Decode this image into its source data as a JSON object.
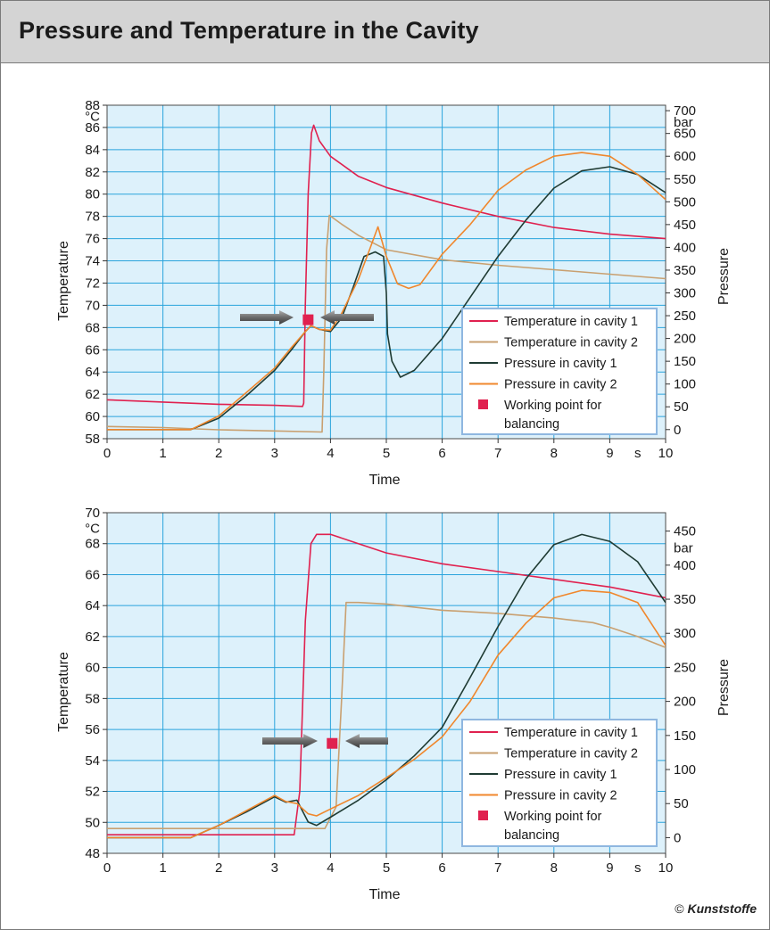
{
  "figure": {
    "title": "Pressure and Temperature in the Cavity",
    "credit_symbol": "©",
    "credit_brand": "Kunststoffe"
  },
  "chart_data": [
    {
      "type": "line",
      "x_label": "Time",
      "x_unit": "s",
      "x_ticks": [
        "0",
        "1",
        "2",
        "3",
        "4",
        "5",
        "6",
        "7",
        "8",
        "9",
        "10"
      ],
      "xlim": [
        0,
        10
      ],
      "y_left_label": "Temperature",
      "y_left_unit": "°C",
      "y_left_ticks": [
        "58",
        "60",
        "62",
        "64",
        "66",
        "68",
        "70",
        "72",
        "74",
        "76",
        "78",
        "80",
        "82",
        "84",
        "86",
        "88"
      ],
      "y_left_lim": [
        58,
        88
      ],
      "y_right_label": "Pressure",
      "y_right_unit": "bar",
      "y_right_ticks": [
        "0",
        "50",
        "100",
        "150",
        "200",
        "250",
        "300",
        "350",
        "400",
        "450",
        "500",
        "550",
        "600",
        "650",
        "700"
      ],
      "y_right_lim": [
        -20,
        712
      ],
      "grid": true,
      "legend_position": "lower-right",
      "colors": {
        "plot_bg": "#ddf1fb",
        "grid": "#2aa4dc",
        "legend_border": "#8fb7e0"
      },
      "series": [
        {
          "name": "Temperature in cavity 1",
          "axis": "left",
          "color": "#e0214f",
          "kind": "line",
          "points": [
            [
              0,
              61.5
            ],
            [
              1,
              61.3
            ],
            [
              2,
              61.1
            ],
            [
              3,
              61.0
            ],
            [
              3.5,
              60.9
            ],
            [
              3.52,
              61.2
            ],
            [
              3.55,
              70
            ],
            [
              3.6,
              80
            ],
            [
              3.66,
              85.5
            ],
            [
              3.7,
              86.2
            ],
            [
              3.8,
              84.8
            ],
            [
              4,
              83.4
            ],
            [
              4.5,
              81.6
            ],
            [
              5,
              80.6
            ],
            [
              6,
              79.2
            ],
            [
              7,
              78
            ],
            [
              8,
              77
            ],
            [
              9,
              76.4
            ],
            [
              10,
              76
            ]
          ]
        },
        {
          "name": "Temperature in cavity 2",
          "axis": "left",
          "color": "#c9a070",
          "kind": "line",
          "points": [
            [
              0,
              59.1
            ],
            [
              1,
              59
            ],
            [
              2,
              58.8
            ],
            [
              3,
              58.7
            ],
            [
              3.85,
              58.6
            ],
            [
              3.88,
              64
            ],
            [
              3.93,
              75
            ],
            [
              3.98,
              78.1
            ],
            [
              4.2,
              77.3
            ],
            [
              4.5,
              76.3
            ],
            [
              5,
              75
            ],
            [
              6,
              74.1
            ],
            [
              7,
              73.6
            ],
            [
              8,
              73.2
            ],
            [
              9,
              72.8
            ],
            [
              10,
              72.4
            ]
          ]
        },
        {
          "name": "Pressure in cavity 1",
          "axis": "right",
          "color": "#1f3b33",
          "kind": "line",
          "points": [
            [
              0,
              0
            ],
            [
              1.5,
              0
            ],
            [
              2,
              25
            ],
            [
              2.5,
              75
            ],
            [
              3,
              130
            ],
            [
              3.3,
              175
            ],
            [
              3.55,
              215
            ],
            [
              3.65,
              228
            ],
            [
              3.8,
              220
            ],
            [
              4,
              215
            ],
            [
              4.2,
              245
            ],
            [
              4.4,
              310
            ],
            [
              4.6,
              380
            ],
            [
              4.8,
              390
            ],
            [
              4.95,
              380
            ],
            [
              5.0,
              300
            ],
            [
              5.02,
              210
            ],
            [
              5.1,
              150
            ],
            [
              5.25,
              115
            ],
            [
              5.5,
              130
            ],
            [
              6,
              200
            ],
            [
              6.5,
              290
            ],
            [
              7,
              380
            ],
            [
              7.5,
              460
            ],
            [
              8,
              530
            ],
            [
              8.5,
              568
            ],
            [
              9,
              577
            ],
            [
              9.5,
              560
            ],
            [
              10,
              520
            ]
          ]
        },
        {
          "name": "Pressure in cavity 2",
          "axis": "right",
          "color": "#f0872c",
          "kind": "line",
          "points": [
            [
              0,
              0
            ],
            [
              1.5,
              0
            ],
            [
              2,
              30
            ],
            [
              2.5,
              82
            ],
            [
              3,
              135
            ],
            [
              3.3,
              180
            ],
            [
              3.55,
              215
            ],
            [
              3.65,
              228
            ],
            [
              3.8,
              220
            ],
            [
              4,
              218
            ],
            [
              4.2,
              255
            ],
            [
              4.5,
              330
            ],
            [
              4.7,
              395
            ],
            [
              4.85,
              445
            ],
            [
              5.0,
              380
            ],
            [
              5.2,
              320
            ],
            [
              5.4,
              310
            ],
            [
              5.6,
              318
            ],
            [
              6,
              385
            ],
            [
              6.5,
              450
            ],
            [
              7,
              525
            ],
            [
              7.5,
              570
            ],
            [
              8,
              600
            ],
            [
              8.5,
              608
            ],
            [
              9,
              600
            ],
            [
              9.5,
              560
            ],
            [
              10,
              505
            ]
          ]
        },
        {
          "name": "Working point for\nbalancing",
          "axis": "left",
          "color": "#e0214f",
          "kind": "marker",
          "points": [
            [
              3.6,
              68.7
            ]
          ]
        }
      ]
    },
    {
      "type": "line",
      "x_label": "Time",
      "x_unit": "s",
      "x_ticks": [
        "0",
        "1",
        "2",
        "3",
        "4",
        "5",
        "6",
        "7",
        "8",
        "9",
        "10"
      ],
      "xlim": [
        0,
        10
      ],
      "y_left_label": "Temperature",
      "y_left_unit": "°C",
      "y_left_ticks": [
        "48",
        "50",
        "52",
        "54",
        "56",
        "58",
        "60",
        "62",
        "64",
        "66",
        "68",
        "70"
      ],
      "y_left_lim": [
        48,
        70
      ],
      "y_right_label": "Pressure",
      "y_right_unit": "bar",
      "y_right_ticks": [
        "0",
        "50",
        "100",
        "150",
        "200",
        "250",
        "300",
        "350",
        "400",
        "450"
      ],
      "y_right_lim": [
        -23,
        477
      ],
      "grid": true,
      "legend_position": "lower-right",
      "colors": {
        "plot_bg": "#ddf1fb",
        "grid": "#2aa4dc",
        "legend_border": "#8fb7e0"
      },
      "series": [
        {
          "name": "Temperature in cavity 1",
          "axis": "left",
          "color": "#e0214f",
          "kind": "line",
          "points": [
            [
              0,
              49.2
            ],
            [
              1,
              49.2
            ],
            [
              2,
              49.2
            ],
            [
              3,
              49.2
            ],
            [
              3.35,
              49.2
            ],
            [
              3.45,
              52
            ],
            [
              3.55,
              63
            ],
            [
              3.65,
              68
            ],
            [
              3.75,
              68.6
            ],
            [
              4,
              68.6
            ],
            [
              4.5,
              68
            ],
            [
              5,
              67.4
            ],
            [
              6,
              66.7
            ],
            [
              7,
              66.2
            ],
            [
              8,
              65.7
            ],
            [
              9,
              65.2
            ],
            [
              10,
              64.5
            ]
          ]
        },
        {
          "name": "Temperature in cavity 2",
          "axis": "left",
          "color": "#c9a070",
          "kind": "line",
          "points": [
            [
              0,
              49.6
            ],
            [
              1,
              49.6
            ],
            [
              2,
              49.6
            ],
            [
              3,
              49.6
            ],
            [
              3.9,
              49.6
            ],
            [
              4.1,
              51
            ],
            [
              4.2,
              58
            ],
            [
              4.28,
              64.2
            ],
            [
              4.5,
              64.2
            ],
            [
              5,
              64.1
            ],
            [
              6,
              63.7
            ],
            [
              7,
              63.5
            ],
            [
              8,
              63.2
            ],
            [
              8.7,
              62.9
            ],
            [
              9,
              62.6
            ],
            [
              9.5,
              62
            ],
            [
              10,
              61.3
            ]
          ]
        },
        {
          "name": "Pressure in cavity 1",
          "axis": "right",
          "color": "#1f3b33",
          "kind": "line",
          "points": [
            [
              0,
              0
            ],
            [
              1.5,
              0
            ],
            [
              2,
              18
            ],
            [
              2.5,
              38
            ],
            [
              3,
              60
            ],
            [
              3.2,
              52
            ],
            [
              3.4,
              55
            ],
            [
              3.6,
              23
            ],
            [
              3.75,
              18
            ],
            [
              4,
              30
            ],
            [
              4.5,
              55
            ],
            [
              5,
              85
            ],
            [
              5.5,
              120
            ],
            [
              6,
              162
            ],
            [
              6.5,
              235
            ],
            [
              7,
              310
            ],
            [
              7.5,
              380
            ],
            [
              8,
              430
            ],
            [
              8.5,
              445
            ],
            [
              9,
              435
            ],
            [
              9.5,
              405
            ],
            [
              10,
              345
            ]
          ]
        },
        {
          "name": "Pressure in cavity 2",
          "axis": "right",
          "color": "#f0872c",
          "kind": "line",
          "points": [
            [
              0,
              0
            ],
            [
              1.5,
              0
            ],
            [
              2,
              18
            ],
            [
              2.5,
              40
            ],
            [
              3,
              62
            ],
            [
              3.2,
              53
            ],
            [
              3.4,
              50
            ],
            [
              3.6,
              35
            ],
            [
              3.75,
              32
            ],
            [
              4,
              42
            ],
            [
              4.5,
              62
            ],
            [
              5,
              88
            ],
            [
              5.5,
              115
            ],
            [
              6,
              148
            ],
            [
              6.5,
              200
            ],
            [
              7,
              268
            ],
            [
              7.5,
              315
            ],
            [
              8,
              352
            ],
            [
              8.5,
              363
            ],
            [
              9,
              360
            ],
            [
              9.5,
              345
            ],
            [
              10,
              282
            ]
          ]
        },
        {
          "name": "Working point for\nbalancing",
          "axis": "left",
          "color": "#e0214f",
          "kind": "marker",
          "points": [
            [
              4.03,
              55.1
            ]
          ]
        }
      ]
    }
  ]
}
